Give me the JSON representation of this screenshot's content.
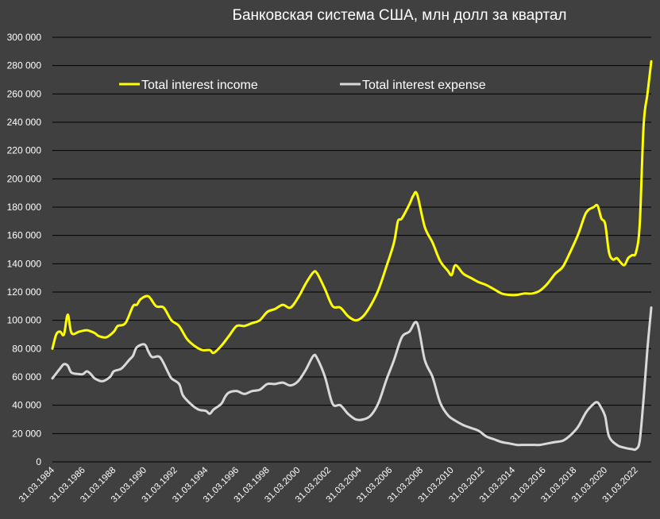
{
  "chart_data": {
    "type": "line",
    "title": "Банковская система США, млн долл за квартал",
    "xlabel": "",
    "ylabel": "",
    "x_range": [
      "1984-03-31",
      "2023-03-31"
    ],
    "ylim": [
      0,
      300000
    ],
    "y_ticks": [
      0,
      20000,
      40000,
      60000,
      80000,
      100000,
      120000,
      140000,
      160000,
      180000,
      200000,
      220000,
      240000,
      260000,
      280000,
      300000
    ],
    "y_tick_labels": [
      "0",
      "20 000",
      "40 000",
      "60 000",
      "80 000",
      "100 000",
      "120 000",
      "140 000",
      "160 000",
      "180 000",
      "200 000",
      "220 000",
      "240 000",
      "260 000",
      "280 000",
      "300 000"
    ],
    "x_ticks": [
      "31.03.1984",
      "31.03.1986",
      "31.03.1988",
      "31.03.1990",
      "31.03.1992",
      "31.03.1994",
      "31.03.1996",
      "31.03.1998",
      "31.03.2000",
      "31.03.2002",
      "31.03.2004",
      "31.03.2006",
      "31.03.2008",
      "31.03.2010",
      "31.03.2012",
      "31.03.2014",
      "31.03.2016",
      "31.03.2018",
      "31.03.2020",
      "31.03.2022"
    ],
    "grid": "horizontal",
    "legend_position": "top-left",
    "series": [
      {
        "name": "Total interest income",
        "color": "#ffff00",
        "points": [
          [
            "1984-03-31",
            80000
          ],
          [
            "1984-06-30",
            90000
          ],
          [
            "1984-09-30",
            92000
          ],
          [
            "1984-12-31",
            90000
          ],
          [
            "1985-03-31",
            104000
          ],
          [
            "1985-06-30",
            91000
          ],
          [
            "1985-12-31",
            92000
          ],
          [
            "1986-06-30",
            93000
          ],
          [
            "1986-12-31",
            91000
          ],
          [
            "1987-03-31",
            89000
          ],
          [
            "1987-09-30",
            88000
          ],
          [
            "1988-03-31",
            92000
          ],
          [
            "1988-06-30",
            96000
          ],
          [
            "1988-12-31",
            98000
          ],
          [
            "1989-06-30",
            110000
          ],
          [
            "1989-09-30",
            111000
          ],
          [
            "1989-12-31",
            115000
          ],
          [
            "1990-06-30",
            117000
          ],
          [
            "1990-12-31",
            110000
          ],
          [
            "1991-06-30",
            109000
          ],
          [
            "1991-12-31",
            100000
          ],
          [
            "1992-06-30",
            96000
          ],
          [
            "1992-12-31",
            87000
          ],
          [
            "1993-06-30",
            82000
          ],
          [
            "1993-12-31",
            79000
          ],
          [
            "1994-06-30",
            79000
          ],
          [
            "1994-09-30",
            77000
          ],
          [
            "1995-03-31",
            82000
          ],
          [
            "1995-09-30",
            89000
          ],
          [
            "1996-03-31",
            96000
          ],
          [
            "1996-09-30",
            96000
          ],
          [
            "1997-03-31",
            98000
          ],
          [
            "1997-09-30",
            100000
          ],
          [
            "1998-03-31",
            106000
          ],
          [
            "1998-09-30",
            108000
          ],
          [
            "1999-03-31",
            111000
          ],
          [
            "1999-09-30",
            109000
          ],
          [
            "2000-03-31",
            116000
          ],
          [
            "2000-09-30",
            126000
          ],
          [
            "2001-03-31",
            134000
          ],
          [
            "2001-06-30",
            133000
          ],
          [
            "2001-12-31",
            122000
          ],
          [
            "2002-06-30",
            110000
          ],
          [
            "2002-12-31",
            109000
          ],
          [
            "2003-06-30",
            103000
          ],
          [
            "2003-12-31",
            100000
          ],
          [
            "2004-06-30",
            103000
          ],
          [
            "2004-12-31",
            111000
          ],
          [
            "2005-06-30",
            122000
          ],
          [
            "2005-12-31",
            138000
          ],
          [
            "2006-06-30",
            155000
          ],
          [
            "2006-09-30",
            170000
          ],
          [
            "2006-12-31",
            172000
          ],
          [
            "2007-06-30",
            182000
          ],
          [
            "2007-09-30",
            188000
          ],
          [
            "2007-12-31",
            189000
          ],
          [
            "2008-06-30",
            166000
          ],
          [
            "2008-12-31",
            155000
          ],
          [
            "2009-06-30",
            142000
          ],
          [
            "2009-12-31",
            135000
          ],
          [
            "2010-03-31",
            132000
          ],
          [
            "2010-06-30",
            139000
          ],
          [
            "2010-12-31",
            133000
          ],
          [
            "2011-06-30",
            130000
          ],
          [
            "2011-12-31",
            127000
          ],
          [
            "2012-06-30",
            125000
          ],
          [
            "2012-12-31",
            122000
          ],
          [
            "2013-06-30",
            119000
          ],
          [
            "2013-12-31",
            118000
          ],
          [
            "2014-06-30",
            118000
          ],
          [
            "2014-12-31",
            119000
          ],
          [
            "2015-06-30",
            119000
          ],
          [
            "2015-12-31",
            121000
          ],
          [
            "2016-06-30",
            126000
          ],
          [
            "2016-12-31",
            133000
          ],
          [
            "2017-06-30",
            138000
          ],
          [
            "2017-12-31",
            149000
          ],
          [
            "2018-06-30",
            161000
          ],
          [
            "2018-12-31",
            176000
          ],
          [
            "2019-06-30",
            180000
          ],
          [
            "2019-09-30",
            181000
          ],
          [
            "2019-12-31",
            172000
          ],
          [
            "2020-03-31",
            168000
          ],
          [
            "2020-06-30",
            148000
          ],
          [
            "2020-09-30",
            143000
          ],
          [
            "2020-12-31",
            144000
          ],
          [
            "2021-03-31",
            141000
          ],
          [
            "2021-06-30",
            139000
          ],
          [
            "2021-09-30",
            144000
          ],
          [
            "2021-12-31",
            146000
          ],
          [
            "2022-03-31",
            148000
          ],
          [
            "2022-06-30",
            168000
          ],
          [
            "2022-09-30",
            238000
          ],
          [
            "2022-12-31",
            260000
          ],
          [
            "2023-03-31",
            283000
          ]
        ]
      },
      {
        "name": "Total interest expense",
        "color": "#d9d9d9",
        "points": [
          [
            "1984-03-31",
            59000
          ],
          [
            "1984-09-30",
            66000
          ],
          [
            "1984-12-31",
            69000
          ],
          [
            "1985-03-31",
            68000
          ],
          [
            "1985-06-30",
            63000
          ],
          [
            "1985-12-31",
            62000
          ],
          [
            "1986-03-31",
            62000
          ],
          [
            "1986-06-30",
            64000
          ],
          [
            "1986-09-30",
            62000
          ],
          [
            "1986-12-31",
            59000
          ],
          [
            "1987-06-30",
            57000
          ],
          [
            "1987-12-31",
            60000
          ],
          [
            "1988-03-31",
            64000
          ],
          [
            "1988-09-30",
            66000
          ],
          [
            "1989-03-31",
            72000
          ],
          [
            "1989-06-30",
            75000
          ],
          [
            "1989-09-30",
            81000
          ],
          [
            "1990-03-31",
            83000
          ],
          [
            "1990-06-30",
            78000
          ],
          [
            "1990-09-30",
            74000
          ],
          [
            "1991-03-31",
            74000
          ],
          [
            "1991-09-30",
            64000
          ],
          [
            "1991-12-31",
            59000
          ],
          [
            "1992-06-30",
            55000
          ],
          [
            "1992-09-30",
            47000
          ],
          [
            "1993-03-31",
            41000
          ],
          [
            "1993-09-30",
            37000
          ],
          [
            "1994-03-31",
            36000
          ],
          [
            "1994-06-30",
            34000
          ],
          [
            "1994-09-30",
            37000
          ],
          [
            "1995-03-31",
            41000
          ],
          [
            "1995-06-30",
            46000
          ],
          [
            "1995-09-30",
            49000
          ],
          [
            "1996-03-31",
            50000
          ],
          [
            "1996-09-30",
            48000
          ],
          [
            "1997-03-31",
            50000
          ],
          [
            "1997-09-30",
            51000
          ],
          [
            "1998-03-31",
            55000
          ],
          [
            "1998-09-30",
            55000
          ],
          [
            "1999-03-31",
            56000
          ],
          [
            "1999-09-30",
            54000
          ],
          [
            "2000-03-31",
            57000
          ],
          [
            "2000-09-30",
            65000
          ],
          [
            "2001-03-31",
            75000
          ],
          [
            "2001-06-30",
            73000
          ],
          [
            "2001-12-31",
            60000
          ],
          [
            "2002-06-30",
            41000
          ],
          [
            "2002-12-31",
            40000
          ],
          [
            "2003-06-30",
            34000
          ],
          [
            "2003-12-31",
            30000
          ],
          [
            "2004-06-30",
            30000
          ],
          [
            "2004-12-31",
            33000
          ],
          [
            "2005-06-30",
            42000
          ],
          [
            "2005-12-31",
            58000
          ],
          [
            "2006-06-30",
            72000
          ],
          [
            "2006-12-31",
            88000
          ],
          [
            "2007-06-30",
            92000
          ],
          [
            "2007-12-31",
            98000
          ],
          [
            "2008-06-30",
            72000
          ],
          [
            "2008-12-31",
            60000
          ],
          [
            "2009-06-30",
            42000
          ],
          [
            "2009-12-31",
            33000
          ],
          [
            "2010-06-30",
            29000
          ],
          [
            "2010-12-31",
            26000
          ],
          [
            "2011-06-30",
            24000
          ],
          [
            "2011-12-31",
            22000
          ],
          [
            "2012-06-30",
            18000
          ],
          [
            "2012-12-31",
            16000
          ],
          [
            "2013-06-30",
            14000
          ],
          [
            "2013-12-31",
            13000
          ],
          [
            "2014-06-30",
            12000
          ],
          [
            "2014-12-31",
            12000
          ],
          [
            "2015-06-30",
            12000
          ],
          [
            "2015-12-31",
            12000
          ],
          [
            "2016-06-30",
            13000
          ],
          [
            "2016-12-31",
            14000
          ],
          [
            "2017-06-30",
            15000
          ],
          [
            "2017-12-31",
            19000
          ],
          [
            "2018-06-30",
            25000
          ],
          [
            "2018-12-31",
            35000
          ],
          [
            "2019-06-30",
            41000
          ],
          [
            "2019-09-30",
            42000
          ],
          [
            "2019-12-31",
            38000
          ],
          [
            "2020-03-31",
            32000
          ],
          [
            "2020-06-30",
            18000
          ],
          [
            "2020-12-31",
            12000
          ],
          [
            "2021-06-30",
            10000
          ],
          [
            "2021-12-31",
            9000
          ],
          [
            "2022-03-31",
            9000
          ],
          [
            "2022-06-30",
            15000
          ],
          [
            "2022-09-30",
            45000
          ],
          [
            "2022-12-31",
            80000
          ],
          [
            "2023-03-31",
            109000
          ]
        ]
      }
    ]
  }
}
